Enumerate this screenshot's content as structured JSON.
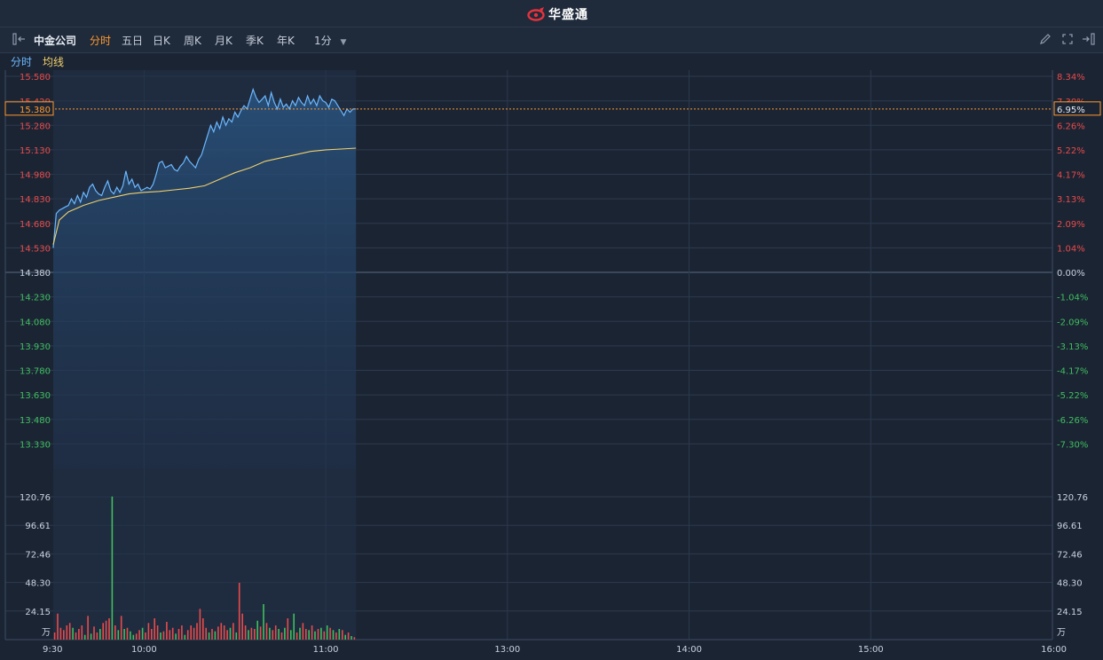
{
  "header": {
    "brand": "华盛通",
    "brand_color": "#e8323c"
  },
  "toolbar": {
    "stock_name": "中金公司",
    "tabs": [
      "分时",
      "五日",
      "日K",
      "周K",
      "月K",
      "季K",
      "年K"
    ],
    "active_tab": "分时",
    "interval": "1分",
    "left_icon": "collapse-panel-icon",
    "right_icons": [
      "pencil-icon",
      "fullscreen-icon",
      "expand-panel-icon"
    ]
  },
  "legend": {
    "price_label": "分时",
    "avg_label": "均线"
  },
  "colors": {
    "background": "#1b2433",
    "grid": "#2c3a4e",
    "price_line": "#6cb8ff",
    "avg_line": "#f2d06b",
    "up": "#e84b4b",
    "down": "#3fbf5f",
    "accent": "#ff9a2e"
  },
  "crosshair": {
    "price": "15.380",
    "pct": "6.95%"
  },
  "chart_data": [
    {
      "type": "line",
      "title": "",
      "preclose": 14.38,
      "ylim": [
        13.18,
        15.58
      ],
      "y_ticks_left": [
        "15.580",
        "15.429",
        "15.280",
        "15.130",
        "14.980",
        "14.830",
        "14.680",
        "14.530",
        "14.380",
        "14.230",
        "14.080",
        "13.930",
        "13.780",
        "13.630",
        "13.480",
        "13.330"
      ],
      "y_ticks_right": [
        "8.34%",
        "7.30%",
        "6.26%",
        "5.22%",
        "4.17%",
        "3.13%",
        "2.09%",
        "1.04%",
        "0.00%",
        "-1.04%",
        "-2.09%",
        "-3.13%",
        "-4.17%",
        "-5.22%",
        "-6.26%",
        "-7.30%"
      ],
      "x_ticks": [
        "9:30",
        "10:00",
        "11:00",
        "13:00",
        "14:00",
        "15:00",
        "16:00"
      ],
      "x_tick_minutes": [
        0,
        30,
        90,
        150,
        210,
        270,
        330
      ],
      "x_total_minutes": 330,
      "series": [
        {
          "name": "分时",
          "x": [
            0,
            1,
            2,
            3,
            4,
            5,
            6,
            7,
            8,
            9,
            10,
            11,
            12,
            13,
            14,
            15,
            16,
            17,
            18,
            19,
            20,
            21,
            22,
            23,
            24,
            25,
            26,
            27,
            28,
            29,
            30,
            31,
            32,
            33,
            34,
            35,
            36,
            37,
            38,
            39,
            40,
            41,
            42,
            43,
            44,
            45,
            46,
            47,
            48,
            49,
            50,
            51,
            52,
            53,
            54,
            55,
            56,
            57,
            58,
            59,
            60,
            61,
            62,
            63,
            64,
            65,
            66,
            67,
            68,
            69,
            70,
            71,
            72,
            73,
            74,
            75,
            76,
            77,
            78,
            79,
            80,
            81,
            82,
            83,
            84,
            85,
            86,
            87,
            88,
            89,
            90,
            91,
            92,
            93,
            94,
            95,
            96,
            97,
            98,
            99,
            100
          ],
          "values": [
            14.53,
            14.74,
            14.76,
            14.77,
            14.78,
            14.79,
            14.83,
            14.8,
            14.85,
            14.81,
            14.87,
            14.84,
            14.9,
            14.92,
            14.88,
            14.86,
            14.85,
            14.9,
            14.94,
            14.88,
            14.86,
            14.9,
            14.87,
            14.91,
            15.0,
            14.92,
            14.95,
            14.9,
            14.92,
            14.88,
            14.89,
            14.9,
            14.89,
            14.92,
            14.98,
            15.05,
            15.06,
            15.02,
            15.03,
            15.04,
            15.01,
            15.0,
            15.03,
            15.05,
            15.09,
            15.06,
            15.04,
            15.02,
            15.07,
            15.1,
            15.16,
            15.22,
            15.28,
            15.24,
            15.3,
            15.26,
            15.33,
            15.28,
            15.32,
            15.3,
            15.36,
            15.33,
            15.37,
            15.4,
            15.38,
            15.44,
            15.5,
            15.45,
            15.42,
            15.44,
            15.46,
            15.4,
            15.48,
            15.42,
            15.38,
            15.44,
            15.39,
            15.41,
            15.38,
            15.43,
            15.4,
            15.45,
            15.42,
            15.4,
            15.46,
            15.41,
            15.44,
            15.4,
            15.46,
            15.43,
            15.42,
            15.39,
            15.44,
            15.43,
            15.4,
            15.37,
            15.34,
            15.38,
            15.36,
            15.38,
            15.38
          ]
        },
        {
          "name": "均线",
          "x": [
            0,
            2,
            5,
            10,
            15,
            20,
            25,
            30,
            35,
            40,
            45,
            50,
            55,
            60,
            65,
            70,
            75,
            80,
            85,
            90,
            95,
            100
          ],
          "values": [
            14.55,
            14.7,
            14.75,
            14.79,
            14.82,
            14.84,
            14.86,
            14.87,
            14.875,
            14.885,
            14.895,
            14.91,
            14.95,
            14.99,
            15.02,
            15.06,
            15.08,
            15.1,
            15.12,
            15.13,
            15.135,
            15.14
          ]
        }
      ]
    },
    {
      "type": "bar",
      "title": "",
      "ylim": [
        0,
        120.76
      ],
      "y_ticks": [
        "120.76",
        "96.61",
        "72.46",
        "48.30",
        "24.15"
      ],
      "unit": "万",
      "x": [
        0,
        1,
        2,
        3,
        4,
        5,
        6,
        7,
        8,
        9,
        10,
        11,
        12,
        13,
        14,
        15,
        16,
        17,
        18,
        19,
        20,
        21,
        22,
        23,
        24,
        25,
        26,
        27,
        28,
        29,
        30,
        31,
        32,
        33,
        34,
        35,
        36,
        37,
        38,
        39,
        40,
        41,
        42,
        43,
        44,
        45,
        46,
        47,
        48,
        49,
        50,
        51,
        52,
        53,
        54,
        55,
        56,
        57,
        58,
        59,
        60,
        61,
        62,
        63,
        64,
        65,
        66,
        67,
        68,
        69,
        70,
        71,
        72,
        73,
        74,
        75,
        76,
        77,
        78,
        79,
        80,
        81,
        82,
        83,
        84,
        85,
        86,
        87,
        88,
        89,
        90,
        91,
        92,
        93,
        94,
        95,
        96,
        97,
        98,
        99
      ],
      "values": [
        6,
        22,
        10,
        8,
        12,
        14,
        10,
        6,
        9,
        12,
        4,
        20,
        5,
        11,
        6,
        9,
        14,
        16,
        18,
        121,
        12,
        8,
        20,
        9,
        10,
        7,
        4,
        5,
        8,
        10,
        6,
        14,
        9,
        18,
        12,
        6,
        7,
        15,
        8,
        10,
        5,
        9,
        12,
        4,
        8,
        12,
        10,
        14,
        26,
        18,
        10,
        6,
        9,
        7,
        11,
        14,
        12,
        8,
        10,
        14,
        6,
        48,
        22,
        12,
        8,
        10,
        9,
        16,
        11,
        30,
        14,
        10,
        8,
        12,
        9,
        6,
        10,
        18,
        8,
        22,
        6,
        10,
        14,
        9,
        8,
        12,
        7,
        9,
        10,
        7,
        12,
        10,
        8,
        6,
        9,
        8,
        4,
        6,
        3,
        2
      ],
      "colors": [
        "up",
        "up",
        "up",
        "up",
        "up",
        "up",
        "down",
        "up",
        "up",
        "up",
        "down",
        "up",
        "down",
        "up",
        "up",
        "down",
        "up",
        "up",
        "up",
        "down",
        "up",
        "down",
        "up",
        "down",
        "up",
        "down",
        "down",
        "up",
        "up",
        "down",
        "up",
        "up",
        "up",
        "up",
        "up",
        "down",
        "up",
        "up",
        "up",
        "up",
        "down",
        "up",
        "up",
        "down",
        "up",
        "up",
        "up",
        "up",
        "up",
        "up",
        "up",
        "down",
        "up",
        "down",
        "up",
        "up",
        "up",
        "up",
        "down",
        "up",
        "down",
        "up",
        "up",
        "up",
        "down",
        "up",
        "up",
        "down",
        "up",
        "down",
        "up",
        "down",
        "up",
        "up",
        "down",
        "up",
        "down",
        "up",
        "down",
        "down",
        "up",
        "down",
        "up",
        "up",
        "down",
        "up",
        "down",
        "up",
        "down",
        "up",
        "down",
        "up",
        "down",
        "up",
        "down",
        "up",
        "down",
        "up",
        "down",
        "up"
      ]
    }
  ]
}
